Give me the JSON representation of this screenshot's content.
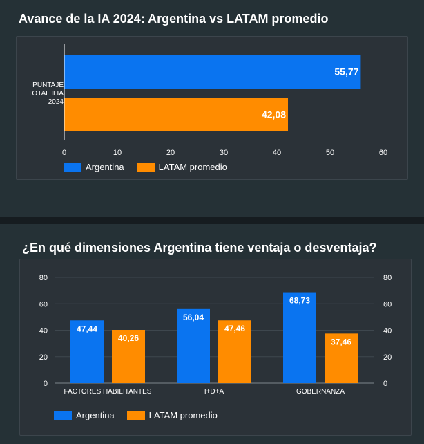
{
  "colors": {
    "argentina": "#0a74f0",
    "latam": "#ff8c00",
    "axis": "#ffffff",
    "grid": "#3e474e"
  },
  "sections": [
    {
      "title": "Avance de la IA 2024: Argentina vs LATAM promedio"
    },
    {
      "title": "¿En qué dimensiones Argentina tiene ventaja o desventaja?"
    }
  ],
  "chart_data": [
    {
      "type": "bar",
      "orientation": "horizontal",
      "categories": [
        "PUNTAJE TOTAL ILIA 2024"
      ],
      "category_label_lines": [
        [
          "PUNTAJE",
          "TOTAL ILIA",
          "2024"
        ]
      ],
      "series": [
        {
          "name": "Argentina",
          "values": [
            55.77
          ],
          "labels": [
            "55,77"
          ]
        },
        {
          "name": "LATAM promedio",
          "values": [
            42.08
          ],
          "labels": [
            "42,08"
          ]
        }
      ],
      "xlim": [
        0,
        60
      ],
      "xticks": [
        "0",
        "10",
        "20",
        "30",
        "40",
        "50",
        "60"
      ],
      "grid": false,
      "legend": "bottom-left"
    },
    {
      "type": "bar",
      "orientation": "vertical",
      "categories": [
        "FACTORES HABILITANTES",
        "I+D+A",
        "GOBERNANZA"
      ],
      "series": [
        {
          "name": "Argentina",
          "values": [
            47.44,
            56.04,
            68.73
          ],
          "labels": [
            "47,44",
            "56,04",
            "68,73"
          ]
        },
        {
          "name": "LATAM promedio",
          "values": [
            40.26,
            47.46,
            37.46
          ],
          "labels": [
            "40,26",
            "47,46",
            "37,46"
          ]
        }
      ],
      "ylim": [
        0,
        80
      ],
      "yticks": [
        "0",
        "20",
        "40",
        "60",
        "80"
      ],
      "y2ticks": [
        "0",
        "20",
        "40",
        "60",
        "80"
      ],
      "grid": true,
      "legend": "bottom-left"
    }
  ]
}
